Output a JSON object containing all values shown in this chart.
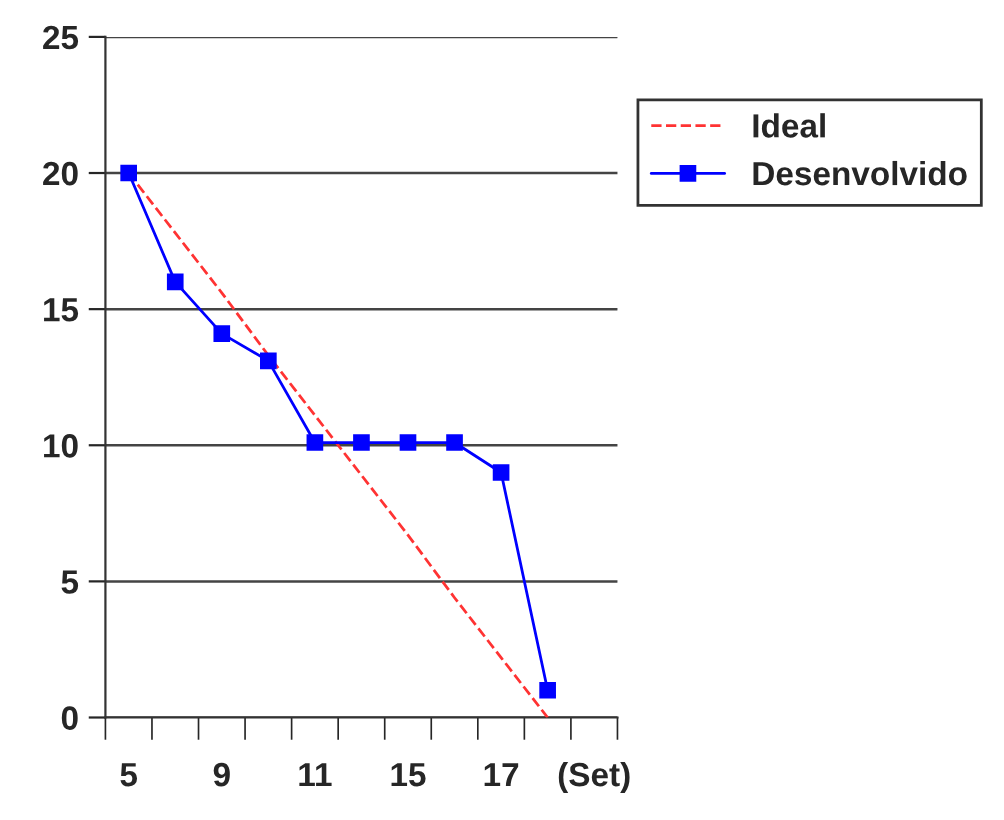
{
  "chart_data": {
    "type": "line",
    "categories": [
      "5",
      null,
      "9",
      null,
      "11",
      null,
      "15",
      null,
      "17",
      null,
      "(Set)"
    ],
    "series": [
      {
        "name": "Ideal",
        "color": "#ff3333",
        "line_style": "dashed",
        "marker": "none",
        "values": [
          20,
          17.8,
          15.6,
          13.3,
          11.1,
          8.9,
          6.7,
          4.4,
          2.2,
          0,
          null
        ]
      },
      {
        "name": "Desenvolvido",
        "color": "#0000ff",
        "line_style": "solid",
        "marker": "square",
        "values": [
          20,
          16,
          14.1,
          13.1,
          10.1,
          10.1,
          10.1,
          10.1,
          9,
          1,
          null
        ]
      }
    ],
    "ylim": [
      0,
      25
    ],
    "yticks": [
      0,
      5,
      10,
      15,
      20,
      25
    ],
    "grid": "y",
    "legend": "right"
  }
}
